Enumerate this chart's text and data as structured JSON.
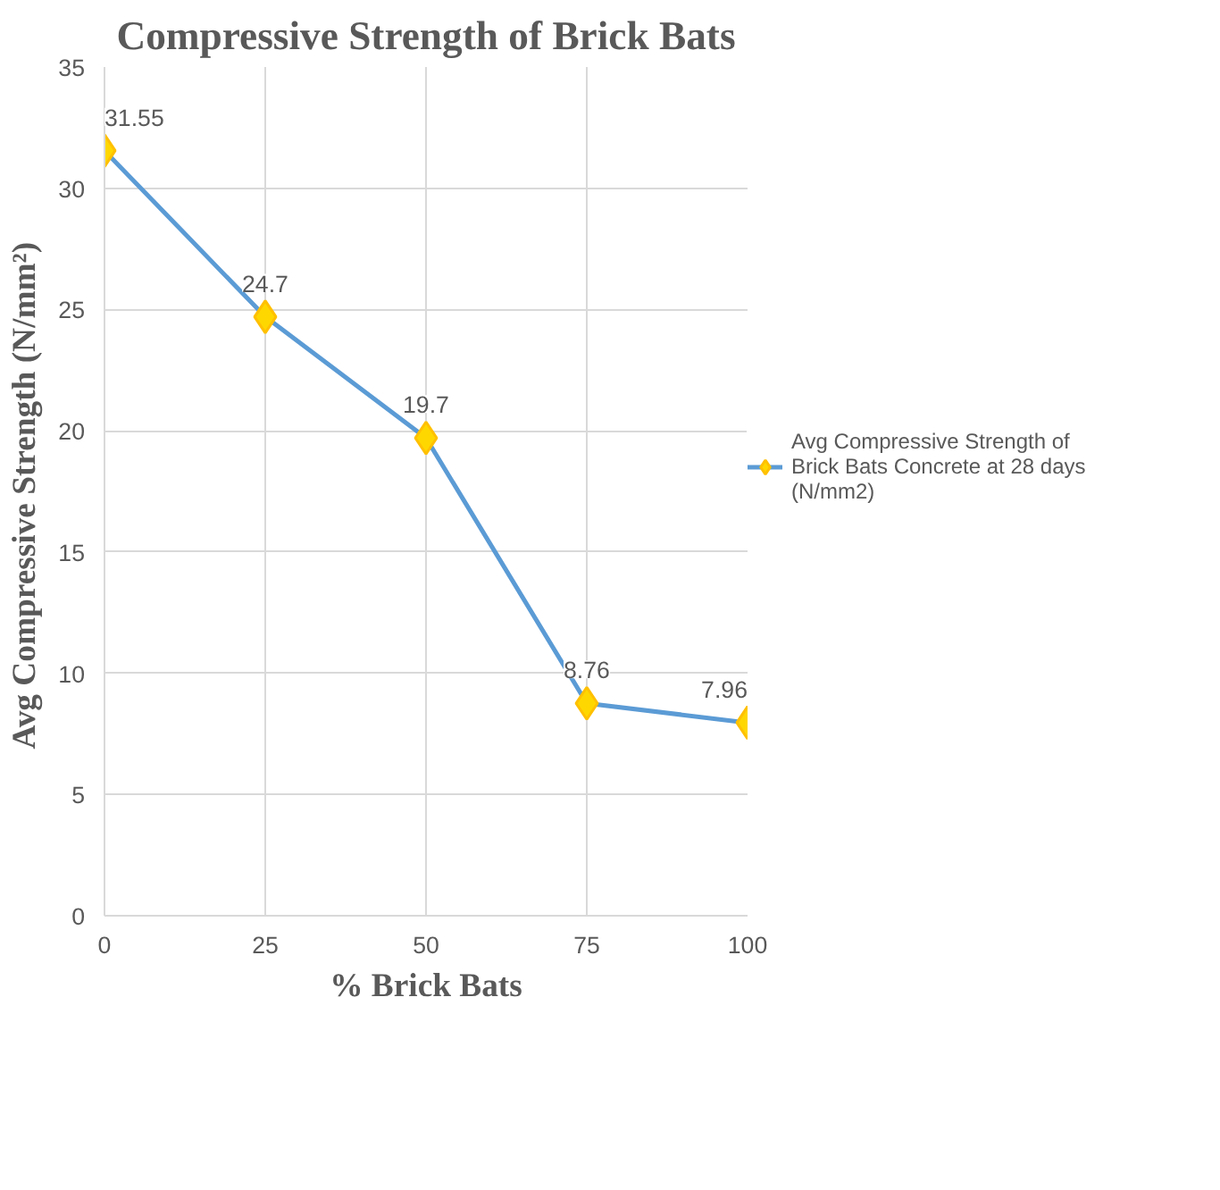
{
  "chart_data": {
    "type": "line",
    "title": "Compressive Strength of Brick Bats",
    "xlabel": "% Brick Bats",
    "ylabel": "Avg Compressive  Strength (N/mm²)",
    "x": [
      0,
      25,
      50,
      75,
      100
    ],
    "series": [
      {
        "name": "Avg Compressive Strength of Brick Bats Concrete at 28 days (N/mm2)",
        "color": "#5b9bd5",
        "values": [
          31.55,
          24.7,
          19.7,
          8.76,
          7.96
        ]
      }
    ],
    "xlim": [
      0,
      100
    ],
    "xticks": [
      0,
      25,
      50,
      75,
      100
    ],
    "ylim": [
      0,
      35
    ],
    "yticks": [
      0,
      5,
      10,
      15,
      20,
      25,
      30,
      35
    ],
    "grid": true,
    "legend": "right",
    "marker": "diamond",
    "line_style": "solid",
    "data_labels": true
  }
}
